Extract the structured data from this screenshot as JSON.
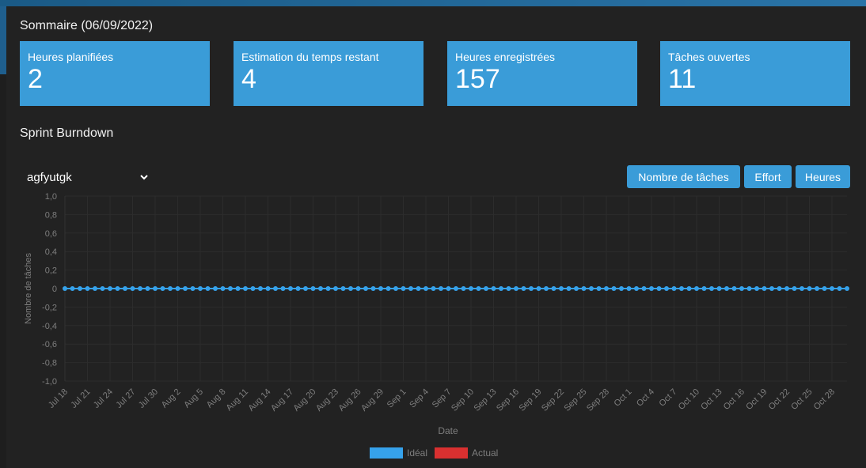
{
  "summary": {
    "title": "Sommaire (06/09/2022)",
    "cards": [
      {
        "label": "Heures planifiées",
        "value": "2"
      },
      {
        "label": "Estimation du temps restant",
        "value": "4"
      },
      {
        "label": "Heures enregistrées",
        "value": "157"
      },
      {
        "label": "Tâches ouvertes",
        "value": "11"
      }
    ]
  },
  "burndown": {
    "title": "Sprint Burndown",
    "sprint_select": {
      "value": "agfyutgk"
    },
    "buttons": {
      "tasks": "Nombre de tâches",
      "effort": "Effort",
      "hours": "Heures"
    }
  },
  "colors": {
    "accent": "#3a9cd8",
    "ideal": "#36a2eb",
    "actual": "#d93030"
  },
  "chart_data": {
    "type": "line",
    "xlabel": "Date",
    "ylabel": "Nombre de tâches",
    "ylim": [
      -1.0,
      1.0
    ],
    "yticks": [
      "1,0",
      "0,8",
      "0,6",
      "0,4",
      "0,2",
      "0",
      "-0,2",
      "-0,4",
      "-0,6",
      "-0,8",
      "-1,0"
    ],
    "xticks": [
      "Jul 18",
      "Jul 21",
      "Jul 24",
      "Jul 27",
      "Jul 30",
      "Aug 2",
      "Aug 5",
      "Aug 8",
      "Aug 11",
      "Aug 14",
      "Aug 17",
      "Aug 20",
      "Aug 23",
      "Aug 26",
      "Aug 29",
      "Sep 1",
      "Sep 4",
      "Sep 7",
      "Sep 10",
      "Sep 13",
      "Sep 16",
      "Sep 19",
      "Sep 22",
      "Sep 25",
      "Sep 28",
      "Oct 1",
      "Oct 4",
      "Oct 7",
      "Oct 10",
      "Oct 13",
      "Oct 16",
      "Oct 19",
      "Oct 22",
      "Oct 25",
      "Oct 28"
    ],
    "x_start": "2022-07-18",
    "x_end": "2022-10-30",
    "grid": true,
    "legend_position": "bottom",
    "series": [
      {
        "name": "Idéal",
        "color": "#36a2eb",
        "values": [
          0,
          0,
          0,
          0,
          0,
          0,
          0,
          0,
          0,
          0,
          0,
          0,
          0,
          0,
          0,
          0,
          0,
          0,
          0,
          0,
          0,
          0,
          0,
          0,
          0,
          0,
          0,
          0,
          0,
          0,
          0,
          0,
          0,
          0,
          0,
          0,
          0,
          0,
          0,
          0,
          0,
          0,
          0,
          0,
          0,
          0,
          0,
          0,
          0,
          0,
          0,
          0,
          0,
          0,
          0,
          0,
          0,
          0,
          0,
          0,
          0,
          0,
          0,
          0,
          0,
          0,
          0,
          0,
          0,
          0,
          0,
          0,
          0,
          0,
          0,
          0,
          0,
          0,
          0,
          0,
          0,
          0,
          0,
          0,
          0,
          0,
          0,
          0,
          0,
          0,
          0,
          0,
          0,
          0,
          0,
          0,
          0,
          0,
          0,
          0,
          0,
          0,
          0,
          0,
          0
        ]
      },
      {
        "name": "Actual",
        "color": "#d93030",
        "values": []
      }
    ]
  }
}
